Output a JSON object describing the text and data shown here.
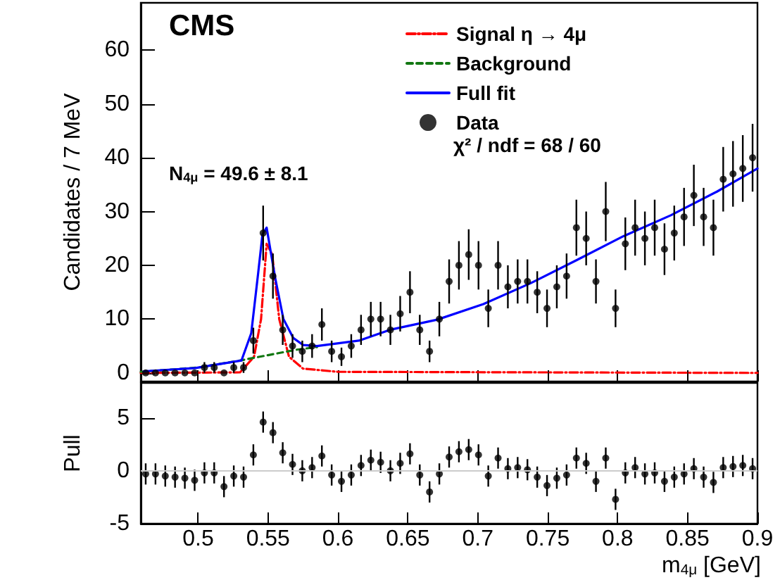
{
  "chart_data": [
    {
      "type": "scatter",
      "ylabel": "Candidates / 7 MeV",
      "annotations": [
        "CMS",
        "N$_{4μ}$ = 49.6 ± 8.1",
        "χ² / ndf = 68 / 60"
      ],
      "xlim": [
        0.459,
        0.9
      ],
      "xticks": [
        0.5,
        0.55,
        0.6,
        0.65,
        0.7,
        0.75,
        0.8,
        0.85,
        0.9
      ],
      "ylim": [
        -1.6,
        68.8
      ],
      "yticks": [
        0,
        10,
        20,
        30,
        40,
        50,
        60
      ],
      "tick_labels": "y",
      "grid": false,
      "legend": "top right",
      "marker": "circle",
      "x": [
        0.4625,
        0.4695,
        0.4765,
        0.4835,
        0.4905,
        0.4975,
        0.5045,
        0.5115,
        0.5185,
        0.5255,
        0.5325,
        0.5395,
        0.5465,
        0.5535,
        0.5605,
        0.5675,
        0.5745,
        0.5815,
        0.5885,
        0.5955,
        0.6025,
        0.6095,
        0.6165,
        0.6235,
        0.6305,
        0.6375,
        0.6445,
        0.6515,
        0.6585,
        0.6655,
        0.6725,
        0.6795,
        0.6865,
        0.6935,
        0.7005,
        0.7075,
        0.7145,
        0.7215,
        0.7285,
        0.7355,
        0.7425,
        0.7495,
        0.7565,
        0.7635,
        0.7705,
        0.7775,
        0.7845,
        0.7915,
        0.7985,
        0.8055,
        0.8125,
        0.8195,
        0.8265,
        0.8335,
        0.8405,
        0.8475,
        0.8545,
        0.8615,
        0.8685,
        0.8755,
        0.8825,
        0.8895,
        0.8965
      ],
      "series": [
        {
          "name": "Signal η → 4μ",
          "type": "line",
          "marker": "none",
          "line_style": "dotted",
          "color": "#ff0000",
          "x": [
            0.459,
            0.53,
            0.54,
            0.545,
            0.549,
            0.553,
            0.558,
            0.565,
            0.575,
            0.6,
            0.9
          ],
          "values": [
            0,
            0.1,
            3,
            10,
            24,
            22,
            10,
            3,
            0.8,
            0.2,
            0
          ]
        },
        {
          "name": "Background",
          "type": "line",
          "marker": "none",
          "line_style": "dashed",
          "color": "#117711",
          "x": [
            0.459,
            0.5,
            0.53,
            0.55,
            0.57,
            0.585
          ],
          "values": [
            0.2,
            1,
            2.3,
            3.3,
            4.3,
            4.8
          ]
        },
        {
          "name": "Full fit",
          "type": "line",
          "marker": "none",
          "line_style": "solid",
          "color": "#0000ff",
          "x": [
            0.461,
            0.498,
            0.531,
            0.538,
            0.543,
            0.546,
            0.549,
            0.555,
            0.561,
            0.568,
            0.575,
            0.585,
            0.615,
            0.637,
            0.671,
            0.704,
            0.738,
            0.771,
            0.804,
            0.838,
            0.871,
            0.9
          ],
          "values": [
            0.3,
            0.9,
            2.3,
            7.4,
            18.7,
            25.7,
            27,
            17.8,
            10,
            6.5,
            5.2,
            5,
            6,
            8,
            9.9,
            12.8,
            16.7,
            21,
            25.4,
            29.3,
            33.7,
            38
          ]
        },
        {
          "name": "Data",
          "color": "#000000",
          "values": [
            0,
            0,
            0,
            0,
            0,
            0,
            1,
            1,
            0,
            1,
            1,
            6,
            26,
            18,
            8,
            5,
            4,
            5,
            9,
            4,
            3,
            5,
            8,
            10,
            10,
            8,
            11,
            15,
            8,
            4,
            10,
            17,
            20,
            22,
            20,
            12,
            20,
            16,
            17,
            17,
            15,
            12,
            16,
            18,
            27,
            25,
            17,
            30,
            12,
            24,
            27,
            25,
            27,
            23,
            26,
            29,
            33,
            29,
            27,
            36,
            37,
            38,
            40
          ],
          "errors": [
            null,
            null,
            null,
            null,
            null,
            null,
            1,
            1,
            null,
            1,
            1,
            2.4,
            5.1,
            4.2,
            2.8,
            2.2,
            2,
            2.2,
            3,
            2,
            1.7,
            2.2,
            2.8,
            3.2,
            3.2,
            2.8,
            3.3,
            3.9,
            2.8,
            2,
            3.2,
            4.1,
            4.5,
            4.7,
            4.5,
            3.5,
            4.5,
            4,
            4.1,
            4.1,
            3.9,
            3.5,
            4,
            4.2,
            5.2,
            5,
            4.1,
            5.5,
            3.5,
            4.9,
            5.2,
            5,
            5.2,
            4.8,
            5.1,
            5.4,
            5.7,
            5.4,
            5.2,
            6,
            6.1,
            6.2,
            6.3
          ]
        }
      ]
    },
    {
      "type": "scatter",
      "ylabel": "Pull",
      "xlabel": "m$_{4μ}$ [GeV]",
      "xlim": [
        0.459,
        0.9
      ],
      "xticks": [
        0.5,
        0.55,
        0.6,
        0.65,
        0.7,
        0.75,
        0.8,
        0.85,
        0.9
      ],
      "ylim": [
        -5,
        8.3
      ],
      "yticks": [
        -5,
        0,
        5
      ],
      "grid": false,
      "marker": "circle",
      "ref_lines": [
        {
          "axis": "y",
          "value": 0,
          "color": "#cccccc"
        }
      ],
      "x": [
        0.4625,
        0.4695,
        0.4765,
        0.4835,
        0.4905,
        0.4975,
        0.5045,
        0.5115,
        0.5185,
        0.5255,
        0.5325,
        0.5395,
        0.5465,
        0.5535,
        0.5605,
        0.5675,
        0.5745,
        0.5815,
        0.5885,
        0.5955,
        0.6025,
        0.6095,
        0.6165,
        0.6235,
        0.6305,
        0.6375,
        0.6445,
        0.6515,
        0.6585,
        0.6655,
        0.6725,
        0.6795,
        0.6865,
        0.6935,
        0.7005,
        0.7075,
        0.7145,
        0.7215,
        0.7285,
        0.7355,
        0.7425,
        0.7495,
        0.7565,
        0.7635,
        0.7705,
        0.7775,
        0.7845,
        0.7915,
        0.7985,
        0.8055,
        0.8125,
        0.8195,
        0.8265,
        0.8335,
        0.8405,
        0.8475,
        0.8545,
        0.8615,
        0.8685,
        0.8755,
        0.8825,
        0.8895,
        0.8965
      ],
      "series": [
        {
          "color": "#000000",
          "values": [
            -0.3,
            -0.3,
            -0.5,
            -0.6,
            -0.7,
            -0.9,
            -0.2,
            -0.2,
            -1.5,
            -0.5,
            -0.6,
            1.5,
            4.6,
            3.6,
            1.7,
            0.6,
            0,
            0.3,
            1.4,
            -0.4,
            -1,
            -0.4,
            0.5,
            1,
            0.8,
            0,
            0.7,
            1.6,
            -0.4,
            -2,
            -0.3,
            1.3,
            1.8,
            2,
            1.5,
            -0.5,
            1.2,
            0.2,
            0.3,
            0.1,
            -0.6,
            -1.4,
            -0.7,
            -0.4,
            1.2,
            0.7,
            -1,
            1.2,
            -2.7,
            -0.2,
            0.3,
            -0.3,
            -0.2,
            -1,
            -0.6,
            -0.3,
            0.2,
            -0.6,
            -1.1,
            0.3,
            0.4,
            0.5,
            0.2
          ],
          "errors": [
            1,
            1,
            1,
            1,
            1,
            1,
            1,
            1,
            1,
            1,
            1,
            1,
            1,
            1,
            1,
            1,
            1,
            1,
            1,
            1,
            1,
            1,
            1,
            1,
            1,
            1,
            1,
            1,
            1,
            1,
            1,
            1,
            1,
            1,
            1,
            1,
            1,
            1,
            1,
            1,
            1,
            1,
            1,
            1,
            1,
            1,
            1,
            1,
            1,
            1,
            1,
            1,
            1,
            1,
            1,
            1,
            1,
            1,
            1,
            1,
            1,
            1,
            1
          ]
        }
      ]
    }
  ]
}
